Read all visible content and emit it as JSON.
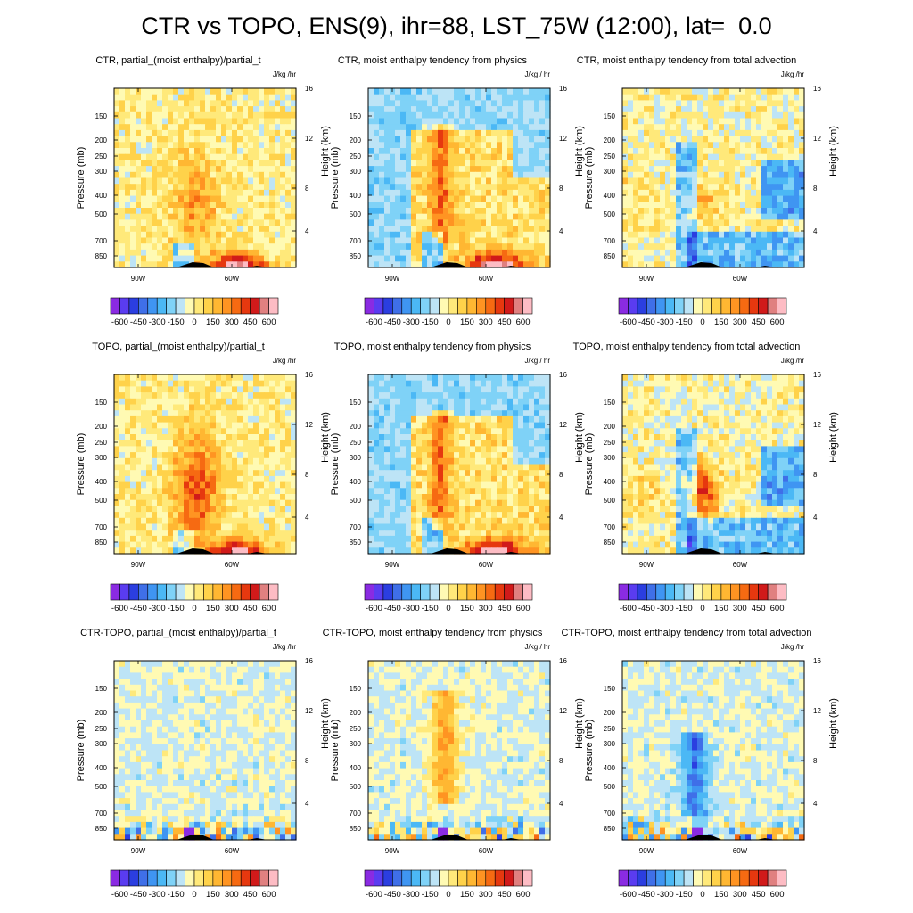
{
  "figure": {
    "title": "CTR vs TOPO, ENS(9), ihr=88, LST_75W (12:00), lat=  0.0"
  },
  "axes": {
    "ylabel_left": "Pressure (mb)",
    "ylabel_right": "Height (km)",
    "units": "J/kg /hr",
    "pressure_ticks": [
      "150",
      "200",
      "250",
      "300",
      "400",
      "500",
      "700",
      "850"
    ],
    "height_ticks": [
      "16",
      "12",
      "8",
      "4"
    ],
    "lon_ticks": [
      "90W",
      "60W"
    ]
  },
  "colorbar": {
    "colors": [
      "#8a2be2",
      "#5a3cf0",
      "#2b3ee0",
      "#3f6fe8",
      "#3f95f2",
      "#4bb8f5",
      "#7fd2f7",
      "#bde4f6",
      "#fffab3",
      "#ffe97a",
      "#ffd24a",
      "#ffb732",
      "#ff9422",
      "#f66a12",
      "#e6380f",
      "#d11a1a",
      "#e08080",
      "#fdbcc4"
    ],
    "tick_labels": [
      "-600",
      "-450",
      "-300",
      "-150",
      "0",
      "150",
      "300",
      "450",
      "600"
    ]
  },
  "panels": [
    {
      "title": "CTR, partial_(moist enthalpy)/partial_t",
      "units": "J/kg /hr"
    },
    {
      "title": "CTR, moist enthalpy tendency from physics",
      "units": "J/kg / hr"
    },
    {
      "title": "CTR, moist enthalpy tendency from total advection",
      "units": "J/kg /hr"
    },
    {
      "title": "TOPO, partial_(moist enthalpy)/partial_t",
      "units": "J/kg /hr"
    },
    {
      "title": "TOPO, moist enthalpy tendency from physics",
      "units": "J/kg / hr"
    },
    {
      "title": "TOPO, moist enthalpy tendency from total advection",
      "units": "J/kg /hr"
    },
    {
      "title": "CTR-TOPO, partial_(moist enthalpy)/partial_t",
      "units": "J/kg /hr"
    },
    {
      "title": "CTR-TOPO, moist enthalpy tendency from physics",
      "units": "J/kg / hr"
    },
    {
      "title": "CTR-TOPO, moist enthalpy tendency from total advection",
      "units": "J/kg /hr"
    }
  ],
  "chart_data": [
    {
      "type": "heatmap",
      "title": "CTR, partial_(moist enthalpy)/partial_t",
      "xlabel": "",
      "ylabel": "Pressure (mb)",
      "ylabel_right": "Height (km)",
      "x_ticks": [
        "90W",
        "60W"
      ],
      "y_ticks": [
        "150",
        "200",
        "250",
        "300",
        "400",
        "500",
        "700",
        "850"
      ],
      "y_right_ticks": [
        "16",
        "12",
        "8",
        "4"
      ],
      "units": "J/kg /hr",
      "color_levels": [
        -600,
        -450,
        -300,
        -150,
        0,
        150,
        300,
        450,
        600
      ]
    },
    {
      "type": "heatmap",
      "title": "CTR, moist enthalpy tendency from physics",
      "xlabel": "",
      "ylabel": "Pressure (mb)",
      "ylabel_right": "Height (km)",
      "x_ticks": [
        "90W",
        "60W"
      ],
      "y_ticks": [
        "150",
        "200",
        "250",
        "300",
        "400",
        "500",
        "700",
        "850"
      ],
      "y_right_ticks": [
        "16",
        "12",
        "8",
        "4"
      ],
      "units": "J/kg / hr",
      "color_levels": [
        -600,
        -450,
        -300,
        -150,
        0,
        150,
        300,
        450,
        600
      ]
    },
    {
      "type": "heatmap",
      "title": "CTR, moist enthalpy tendency from total advection",
      "xlabel": "",
      "ylabel": "Pressure (mb)",
      "ylabel_right": "Height (km)",
      "x_ticks": [
        "90W",
        "60W"
      ],
      "y_ticks": [
        "150",
        "200",
        "250",
        "300",
        "400",
        "500",
        "700",
        "850"
      ],
      "y_right_ticks": [
        "16",
        "12",
        "8",
        "4"
      ],
      "units": "J/kg /hr",
      "color_levels": [
        -600,
        -450,
        -300,
        -150,
        0,
        150,
        300,
        450,
        600
      ]
    },
    {
      "type": "heatmap",
      "title": "TOPO, partial_(moist enthalpy)/partial_t",
      "xlabel": "",
      "ylabel": "Pressure (mb)",
      "ylabel_right": "Height (km)",
      "x_ticks": [
        "90W",
        "60W"
      ],
      "y_ticks": [
        "150",
        "200",
        "250",
        "300",
        "400",
        "500",
        "700",
        "850"
      ],
      "y_right_ticks": [
        "16",
        "12",
        "8",
        "4"
      ],
      "units": "J/kg /hr",
      "color_levels": [
        -600,
        -450,
        -300,
        -150,
        0,
        150,
        300,
        450,
        600
      ]
    },
    {
      "type": "heatmap",
      "title": "TOPO, moist enthalpy tendency from physics",
      "xlabel": "",
      "ylabel": "Pressure (mb)",
      "ylabel_right": "Height (km)",
      "x_ticks": [
        "90W",
        "60W"
      ],
      "y_ticks": [
        "150",
        "200",
        "250",
        "300",
        "400",
        "500",
        "700",
        "850"
      ],
      "y_right_ticks": [
        "16",
        "12",
        "8",
        "4"
      ],
      "units": "J/kg / hr",
      "color_levels": [
        -600,
        -450,
        -300,
        -150,
        0,
        150,
        300,
        450,
        600
      ]
    },
    {
      "type": "heatmap",
      "title": "TOPO, moist enthalpy tendency from total advection",
      "xlabel": "",
      "ylabel": "Pressure (mb)",
      "ylabel_right": "Height (km)",
      "x_ticks": [
        "90W",
        "60W"
      ],
      "y_ticks": [
        "150",
        "200",
        "250",
        "300",
        "400",
        "500",
        "700",
        "850"
      ],
      "y_right_ticks": [
        "16",
        "12",
        "8",
        "4"
      ],
      "units": "J/kg /hr",
      "color_levels": [
        -600,
        -450,
        -300,
        -150,
        0,
        150,
        300,
        450,
        600
      ]
    },
    {
      "type": "heatmap",
      "title": "CTR-TOPO, partial_(moist enthalpy)/partial_t",
      "xlabel": "",
      "ylabel": "Pressure (mb)",
      "ylabel_right": "Height (km)",
      "x_ticks": [
        "90W",
        "60W"
      ],
      "y_ticks": [
        "150",
        "200",
        "250",
        "300",
        "400",
        "500",
        "700",
        "850"
      ],
      "y_right_ticks": [
        "16",
        "12",
        "8",
        "4"
      ],
      "units": "J/kg /hr",
      "color_levels": [
        -600,
        -450,
        -300,
        -150,
        0,
        150,
        300,
        450,
        600
      ]
    },
    {
      "type": "heatmap",
      "title": "CTR-TOPO, moist enthalpy tendency from physics",
      "xlabel": "",
      "ylabel": "Pressure (mb)",
      "ylabel_right": "Height (km)",
      "x_ticks": [
        "90W",
        "60W"
      ],
      "y_ticks": [
        "150",
        "200",
        "250",
        "300",
        "400",
        "500",
        "700",
        "850"
      ],
      "y_right_ticks": [
        "16",
        "12",
        "8",
        "4"
      ],
      "units": "J/kg / hr",
      "color_levels": [
        -600,
        -450,
        -300,
        -150,
        0,
        150,
        300,
        450,
        600
      ]
    },
    {
      "type": "heatmap",
      "title": "CTR-TOPO, moist enthalpy tendency from total advection",
      "xlabel": "",
      "ylabel": "Pressure (mb)",
      "ylabel_right": "Height (km)",
      "x_ticks": [
        "90W",
        "60W"
      ],
      "y_ticks": [
        "150",
        "200",
        "250",
        "300",
        "400",
        "500",
        "700",
        "850"
      ],
      "y_right_ticks": [
        "16",
        "12",
        "8",
        "4"
      ],
      "units": "J/kg /hr",
      "color_levels": [
        -600,
        -450,
        -300,
        -150,
        0,
        150,
        300,
        450,
        600
      ]
    }
  ]
}
